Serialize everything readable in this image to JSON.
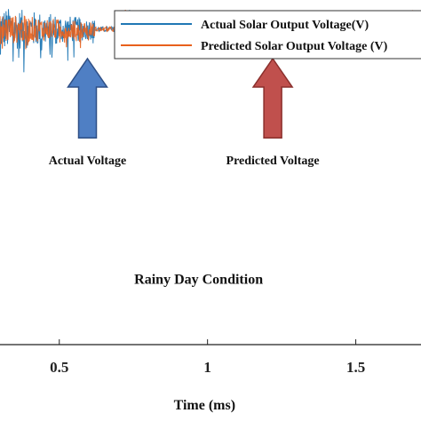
{
  "chart_data": {
    "type": "line",
    "title": "",
    "xlabel": "Time (ms)",
    "ylabel": "",
    "xlim": [
      0.3,
      1.72
    ],
    "ylim": [
      0,
      10
    ],
    "x_ticks": [
      {
        "value": 0.5,
        "label": "0.5"
      },
      {
        "value": 1,
        "label": "1"
      },
      {
        "value": 1.5,
        "label": "1.5"
      }
    ],
    "legend_position": "top-right",
    "grid": false,
    "series": [
      {
        "name": "Actual Solar Output Voltage(V)",
        "color": "#1f77b4",
        "baseline": 9.15,
        "noise_before": 0.65,
        "noise_after": 0.08,
        "noise_transition_x": 0.62
      },
      {
        "name": "Predicted Solar Output Voltage (V)",
        "color": "#e8601c",
        "baseline": 9.15,
        "noise_before": 0.45,
        "noise_after": 0.07,
        "noise_transition_x": 0.62
      }
    ],
    "annotations": [
      {
        "text": "Actual Voltage",
        "x": 0.595,
        "y": 6.6,
        "arrow_color": "#4f7fc4",
        "arrow_stroke": "#2e4f86"
      },
      {
        "text": "Predicted Voltage",
        "x": 1.22,
        "y": 6.6,
        "arrow_color": "#c0504d",
        "arrow_stroke": "#8a2f2c"
      }
    ],
    "condition_label": "Rainy Day Condition"
  }
}
